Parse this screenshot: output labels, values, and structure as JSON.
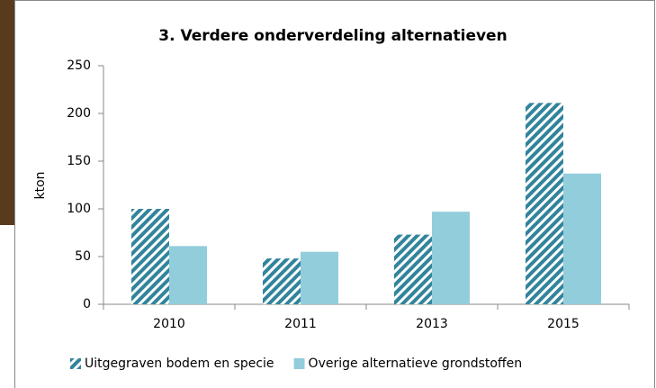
{
  "chart_data": {
    "type": "bar",
    "title": "3. Verdere onderverdeling alternatieven",
    "y_label": "kton",
    "categories": [
      "2010",
      "2011",
      "2013",
      "2015"
    ],
    "series": [
      {
        "name": "Uitgegraven bodem en specie",
        "color": "#31849b",
        "hatch": true,
        "values": [
          100,
          48,
          73,
          211
        ]
      },
      {
        "name": "Overige alternatieve grondstoffen",
        "color": "#92cddc",
        "hatch": false,
        "values": [
          61,
          55,
          97,
          137
        ]
      }
    ],
    "ylim": [
      0,
      250
    ],
    "yticks": [
      0,
      50,
      100,
      150,
      200,
      250
    ],
    "grid": false,
    "legend": "bottom"
  }
}
